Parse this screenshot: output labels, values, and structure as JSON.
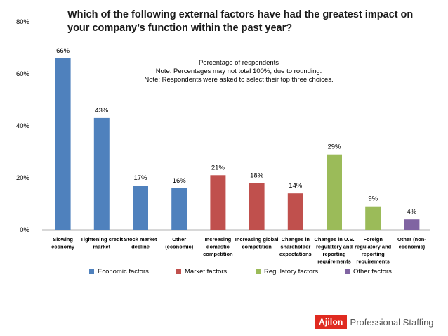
{
  "title": "Which of the following external factors have had the greatest impact on your company’s function within the past year?",
  "notes": [
    "Percentage of respondents",
    "Note: Percentages may not total 100%, due to rounding.",
    "Note: Respondents were asked to select their top three choices."
  ],
  "colors": {
    "economic": "#4f81bd",
    "market": "#c0504d",
    "regulatory": "#9bbb59",
    "other": "#8064a2"
  },
  "chart_data": {
    "type": "bar",
    "ylim": [
      0,
      80
    ],
    "yticks": [
      "0%",
      "20%",
      "40%",
      "60%",
      "80%"
    ],
    "categories": [
      "Slowing economy",
      "Tightening credit market",
      "Stock market decline",
      "Other (economic)",
      "Increasing domestic competition",
      "Increasing global competition",
      "Changes in shareholder expectations",
      "Changes in U.S. regulatory and reporting requirements",
      "Foreign regulatory and reporting requirements",
      "Other (non-economic)"
    ],
    "category_lines": [
      [
        "Slowing",
        "economy"
      ],
      [
        "Tightening credit",
        "market"
      ],
      [
        "Stock market",
        "decline"
      ],
      [
        "Other",
        "(economic)"
      ],
      [
        "Increasing",
        "domestic",
        "competition"
      ],
      [
        "Increasing global",
        "competition"
      ],
      [
        "Changes in",
        "shareholder",
        "expectations"
      ],
      [
        "Changes in U.S.",
        "regulatory and",
        "reporting",
        "requirements"
      ],
      [
        "Foreign",
        "regulatory and",
        "reporting",
        "requirements"
      ],
      [
        "Other (non-",
        "economic)"
      ]
    ],
    "values": [
      66,
      43,
      17,
      16,
      21,
      18,
      14,
      29,
      9,
      4
    ],
    "value_labels": [
      "66%",
      "43%",
      "17%",
      "16%",
      "21%",
      "18%",
      "14%",
      "29%",
      "9%",
      "4%"
    ],
    "groups": [
      "economic",
      "economic",
      "economic",
      "economic",
      "market",
      "market",
      "market",
      "regulatory",
      "regulatory",
      "other"
    ],
    "legend": [
      {
        "name": "Economic factors",
        "group": "economic"
      },
      {
        "name": "Market factors",
        "group": "market"
      },
      {
        "name": "Regulatory factors",
        "group": "regulatory"
      },
      {
        "name": "Other factors",
        "group": "other"
      }
    ]
  },
  "logo": {
    "brand": "Ajilon",
    "tagline": "Professional Staffing"
  }
}
